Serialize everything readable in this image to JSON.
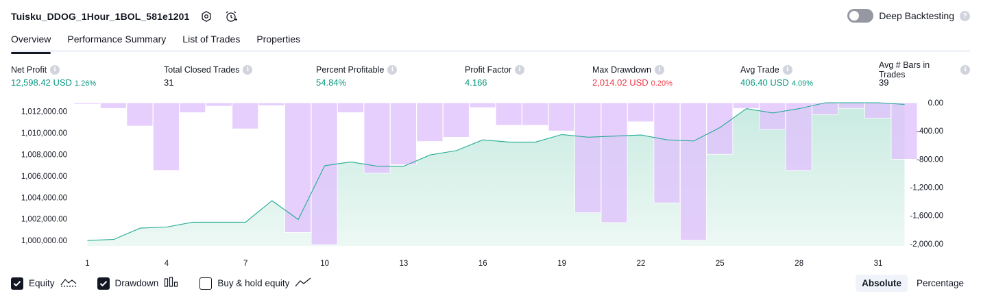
{
  "header": {
    "strategy_name": "Tuisku_DDOG_1Hour_1BOL_581e1201",
    "deep_backtesting_label": "Deep Backtesting",
    "deep_backtesting_enabled": false
  },
  "tabs": [
    {
      "label": "Overview",
      "active": true
    },
    {
      "label": "Performance Summary",
      "active": false
    },
    {
      "label": "List of Trades",
      "active": false
    },
    {
      "label": "Properties",
      "active": false
    }
  ],
  "stats": [
    {
      "label": "Net Profit",
      "value": "12,598.42 USD",
      "pct": "1.26%",
      "tone": "green"
    },
    {
      "label": "Total Closed Trades",
      "value": "31",
      "pct": "",
      "tone": "dark"
    },
    {
      "label": "Percent Profitable",
      "value": "54.84%",
      "pct": "",
      "tone": "green"
    },
    {
      "label": "Profit Factor",
      "value": "4.166",
      "pct": "",
      "tone": "green"
    },
    {
      "label": "Max Drawdown",
      "value": "2,014.02 USD",
      "pct": "0.20%",
      "tone": "red"
    },
    {
      "label": "Avg Trade",
      "value": "406.40 USD",
      "pct": "4.09%",
      "tone": "green"
    },
    {
      "label": "Avg # Bars in Trades",
      "value": "39",
      "pct": "",
      "tone": "dark"
    }
  ],
  "legend": [
    {
      "label": "Equity",
      "checked": true,
      "icon": "equity-line-icon"
    },
    {
      "label": "Drawdown",
      "checked": true,
      "icon": "drawdown-bars-icon"
    },
    {
      "label": "Buy & hold equity",
      "checked": false,
      "icon": "buy-hold-line-icon"
    }
  ],
  "scale_buttons": [
    {
      "label": "Absolute",
      "active": true
    },
    {
      "label": "Percentage",
      "active": false
    }
  ],
  "colors": {
    "equity_line": "#22ab94",
    "equity_fill_top": "#c8ebe1",
    "equity_fill_bottom": "#edf8f4",
    "drawdown_bar": "#e0c2fd",
    "drawdown_overlap": "#b8b4ef",
    "positive": "#089981",
    "negative": "#f23645"
  },
  "chart_data": {
    "type": "area",
    "x": [
      1,
      2,
      3,
      4,
      5,
      6,
      7,
      8,
      9,
      10,
      11,
      12,
      13,
      14,
      15,
      16,
      17,
      18,
      19,
      20,
      21,
      22,
      23,
      24,
      25,
      26,
      27,
      28,
      29,
      30,
      31,
      32
    ],
    "x_ticks": [
      "1",
      "4",
      "7",
      "10",
      "13",
      "16",
      "19",
      "22",
      "25",
      "28",
      "31"
    ],
    "left_axis": {
      "ticks": [
        "1,000,000.00",
        "1,002,000.00",
        "1,004,000.00",
        "1,006,000.00",
        "1,008,000.00",
        "1,010,000.00",
        "1,012,000.00"
      ],
      "ylim": [
        999500,
        1012800
      ]
    },
    "right_axis": {
      "ticks": [
        "0.00",
        "-400.00",
        "-800.00",
        "-1,200.00",
        "-1,600.00",
        "-2,000.00"
      ],
      "ylim": [
        -2030,
        0
      ]
    },
    "series": [
      {
        "name": "Equity",
        "axis": "left",
        "kind": "area",
        "values": [
          1000000,
          1000100,
          1001150,
          1001250,
          1001700,
          1001700,
          1001700,
          1003700,
          1001950,
          1006950,
          1007300,
          1006900,
          1006900,
          1007950,
          1008350,
          1009350,
          1009150,
          1009150,
          1009850,
          1009600,
          1009700,
          1009800,
          1009350,
          1009250,
          1010500,
          1012250,
          1011850,
          1012250,
          1012800,
          1012800,
          1012800,
          1012650
        ]
      },
      {
        "name": "Drawdown",
        "axis": "right",
        "kind": "bar",
        "values": [
          -20,
          -80,
          -330,
          -960,
          -140,
          -50,
          -370,
          -40,
          -1840,
          -2014,
          -140,
          -1000,
          -880,
          -550,
          -490,
          -70,
          -320,
          -320,
          -400,
          -1560,
          -1700,
          -270,
          -1420,
          -1950,
          -730,
          -80,
          -380,
          -960,
          -170,
          -80,
          -220,
          -800
        ]
      }
    ]
  }
}
